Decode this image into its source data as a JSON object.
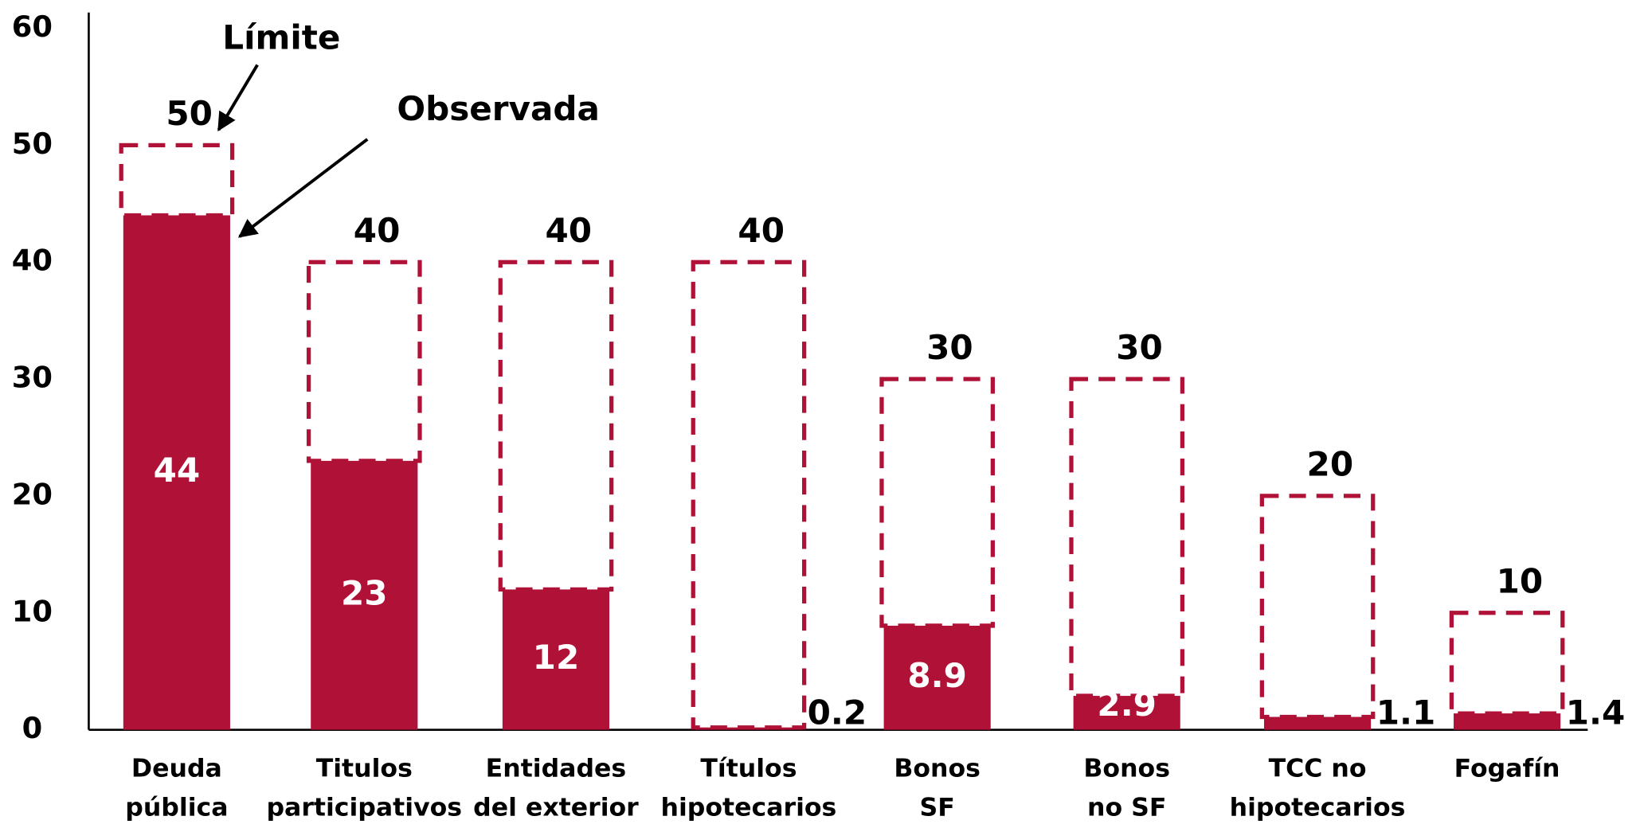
{
  "chart_data": {
    "type": "bar",
    "categories": [
      [
        "Deuda",
        "pública"
      ],
      [
        "Titulos",
        "participativos"
      ],
      [
        "Entidades",
        "del exterior"
      ],
      [
        "Títulos",
        "hipotecarios"
      ],
      [
        "Bonos",
        "SF"
      ],
      [
        "Bonos",
        "no SF"
      ],
      [
        "TCC no",
        "hipotecarios"
      ],
      [
        "Fogafín"
      ]
    ],
    "series": [
      {
        "name": "Límite",
        "color": "#b01237",
        "values": [
          50,
          40,
          40,
          40,
          30,
          30,
          20,
          10
        ]
      },
      {
        "name": "Observada",
        "color": "#b01237",
        "values": [
          44,
          23,
          12,
          0.2,
          8.9,
          2.9,
          1.1,
          1.4
        ]
      }
    ],
    "ylim": [
      0,
      60
    ],
    "yticks": [
      0,
      10,
      20,
      30,
      40,
      50,
      60
    ],
    "grid": false
  }
}
